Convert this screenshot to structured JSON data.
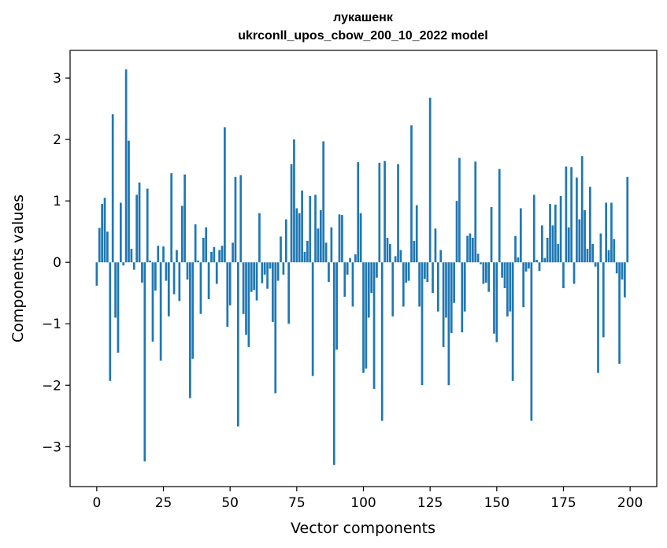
{
  "chart_data": {
    "type": "bar",
    "title_line1": "лукашенк",
    "title_line2": "ukrconll_upos_cbow_200_10_2022 model",
    "xlabel": "Vector components",
    "ylabel": "Components values",
    "xlim": [
      -10,
      210
    ],
    "ylim": [
      -3.65,
      3.45
    ],
    "xticks": [
      0,
      25,
      50,
      75,
      100,
      125,
      150,
      175,
      200
    ],
    "xtick_labels": [
      "0",
      "25",
      "50",
      "75",
      "100",
      "125",
      "150",
      "175",
      "200"
    ],
    "yticks": [
      -3,
      -2,
      -1,
      0,
      1,
      2,
      3
    ],
    "ytick_labels": [
      "−3",
      "−2",
      "−1",
      "0",
      "1",
      "2",
      "3"
    ],
    "bar_color": "#1f77b4",
    "grid": false,
    "x": [
      0,
      1,
      2,
      3,
      4,
      5,
      6,
      7,
      8,
      9,
      10,
      11,
      12,
      13,
      14,
      15,
      16,
      17,
      18,
      19,
      20,
      21,
      22,
      23,
      24,
      25,
      26,
      27,
      28,
      29,
      30,
      31,
      32,
      33,
      34,
      35,
      36,
      37,
      38,
      39,
      40,
      41,
      42,
      43,
      44,
      45,
      46,
      47,
      48,
      49,
      50,
      51,
      52,
      53,
      54,
      55,
      56,
      57,
      58,
      59,
      60,
      61,
      62,
      63,
      64,
      65,
      66,
      67,
      68,
      69,
      70,
      71,
      72,
      73,
      74,
      75,
      76,
      77,
      78,
      79,
      80,
      81,
      82,
      83,
      84,
      85,
      86,
      87,
      88,
      89,
      90,
      91,
      92,
      93,
      94,
      95,
      96,
      97,
      98,
      99,
      100,
      101,
      102,
      103,
      104,
      105,
      106,
      107,
      108,
      109,
      110,
      111,
      112,
      113,
      114,
      115,
      116,
      117,
      118,
      119,
      120,
      121,
      122,
      123,
      124,
      125,
      126,
      127,
      128,
      129,
      130,
      131,
      132,
      133,
      134,
      135,
      136,
      137,
      138,
      139,
      140,
      141,
      142,
      143,
      144,
      145,
      146,
      147,
      148,
      149,
      150,
      151,
      152,
      153,
      154,
      155,
      156,
      157,
      158,
      159,
      160,
      161,
      162,
      163,
      164,
      165,
      166,
      167,
      168,
      169,
      170,
      171,
      172,
      173,
      174,
      175,
      176,
      177,
      178,
      179,
      180,
      181,
      182,
      183,
      184,
      185,
      186,
      187,
      188,
      189,
      190,
      191,
      192,
      193,
      194,
      195,
      196,
      197,
      198,
      199
    ],
    "values": [
      -0.38,
      0.56,
      0.95,
      1.05,
      0.5,
      -1.93,
      2.41,
      -0.9,
      -1.47,
      0.97,
      -0.05,
      3.14,
      1.98,
      0.22,
      -0.12,
      1.1,
      1.3,
      -0.33,
      -3.24,
      1.2,
      0.03,
      -1.29,
      -0.46,
      0.27,
      -1.6,
      0.26,
      -0.3,
      -0.88,
      1.45,
      -0.52,
      0.2,
      -0.63,
      0.92,
      1.43,
      -0.28,
      -2.21,
      -1.57,
      0.62,
      0.03,
      -0.84,
      0.4,
      0.57,
      -0.6,
      0.17,
      0.25,
      -0.35,
      0.2,
      0.27,
      2.2,
      -1.05,
      -0.7,
      0.32,
      1.39,
      -2.67,
      1.42,
      -0.84,
      -1.18,
      -1.38,
      -0.48,
      -0.45,
      -0.62,
      0.8,
      -0.34,
      -0.2,
      -0.43,
      -0.1,
      -0.97,
      -2.13,
      -0.3,
      0.42,
      -0.2,
      0.7,
      -1.0,
      1.6,
      2.0,
      0.88,
      0.8,
      1.17,
      0.17,
      0.35,
      1.08,
      -1.85,
      1.1,
      0.55,
      0.85,
      1.97,
      0.32,
      -0.32,
      0.57,
      -3.3,
      -1.42,
      0.78,
      0.77,
      -0.56,
      -0.2,
      0.07,
      -0.72,
      0.13,
      1.63,
      0.8,
      -1.8,
      -1.73,
      -0.9,
      -0.5,
      -2.06,
      -0.25,
      1.62,
      -2.58,
      1.65,
      0.4,
      0.3,
      -0.88,
      0.1,
      1.6,
      0.2,
      -0.72,
      -0.33,
      -0.3,
      2.23,
      0.35,
      0.93,
      -0.72,
      -2.0,
      -0.27,
      -0.32,
      2.68,
      -0.5,
      0.55,
      -0.8,
      0.2,
      -1.38,
      -0.9,
      -2.0,
      -1.15,
      -0.66,
      1.0,
      1.7,
      -1.14,
      -0.8,
      0.43,
      0.47,
      0.4,
      1.64,
      0.14,
      -0.03,
      -0.35,
      -0.33,
      -0.48,
      0.9,
      -1.16,
      -1.3,
      1.52,
      -0.25,
      -0.42,
      -0.88,
      -0.8,
      -1.93,
      0.43,
      0.08,
      0.88,
      -0.73,
      -0.15,
      -0.1,
      -2.58,
      1.1,
      0.04,
      -0.14,
      0.6,
      0.07,
      0.4,
      0.95,
      0.6,
      0.94,
      0.3,
      1.08,
      -0.42,
      1.56,
      0.57,
      1.55,
      -0.35,
      1.38,
      0.7,
      1.73,
      0.85,
      0.22,
      1.23,
      0.3,
      -0.07,
      -1.8,
      0.47,
      -1.22,
      0.97,
      0.2,
      0.97,
      0.38,
      -0.18,
      -1.65,
      -0.28,
      -0.57,
      1.39
    ]
  }
}
